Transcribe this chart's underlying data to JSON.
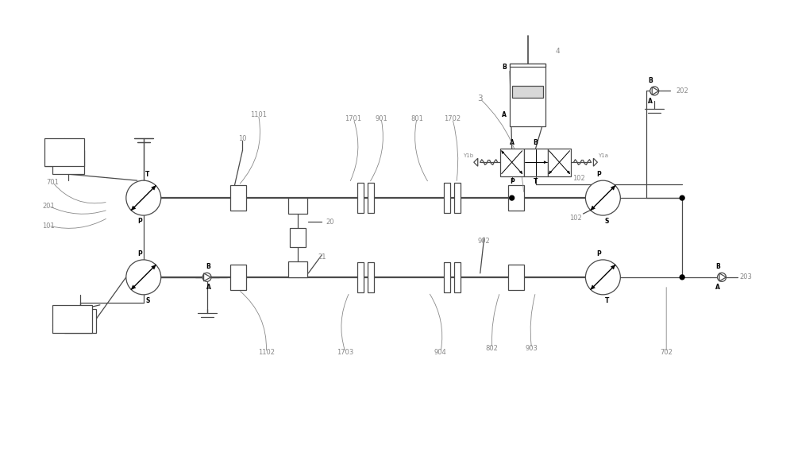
{
  "bg_color": "#ffffff",
  "lc": "#4a4a4a",
  "gc": "#888888",
  "bk": "#000000",
  "figsize": [
    10.0,
    5.89
  ],
  "dpi": 100,
  "xlim": [
    0,
    100
  ],
  "ylim": [
    0,
    58.9
  ]
}
